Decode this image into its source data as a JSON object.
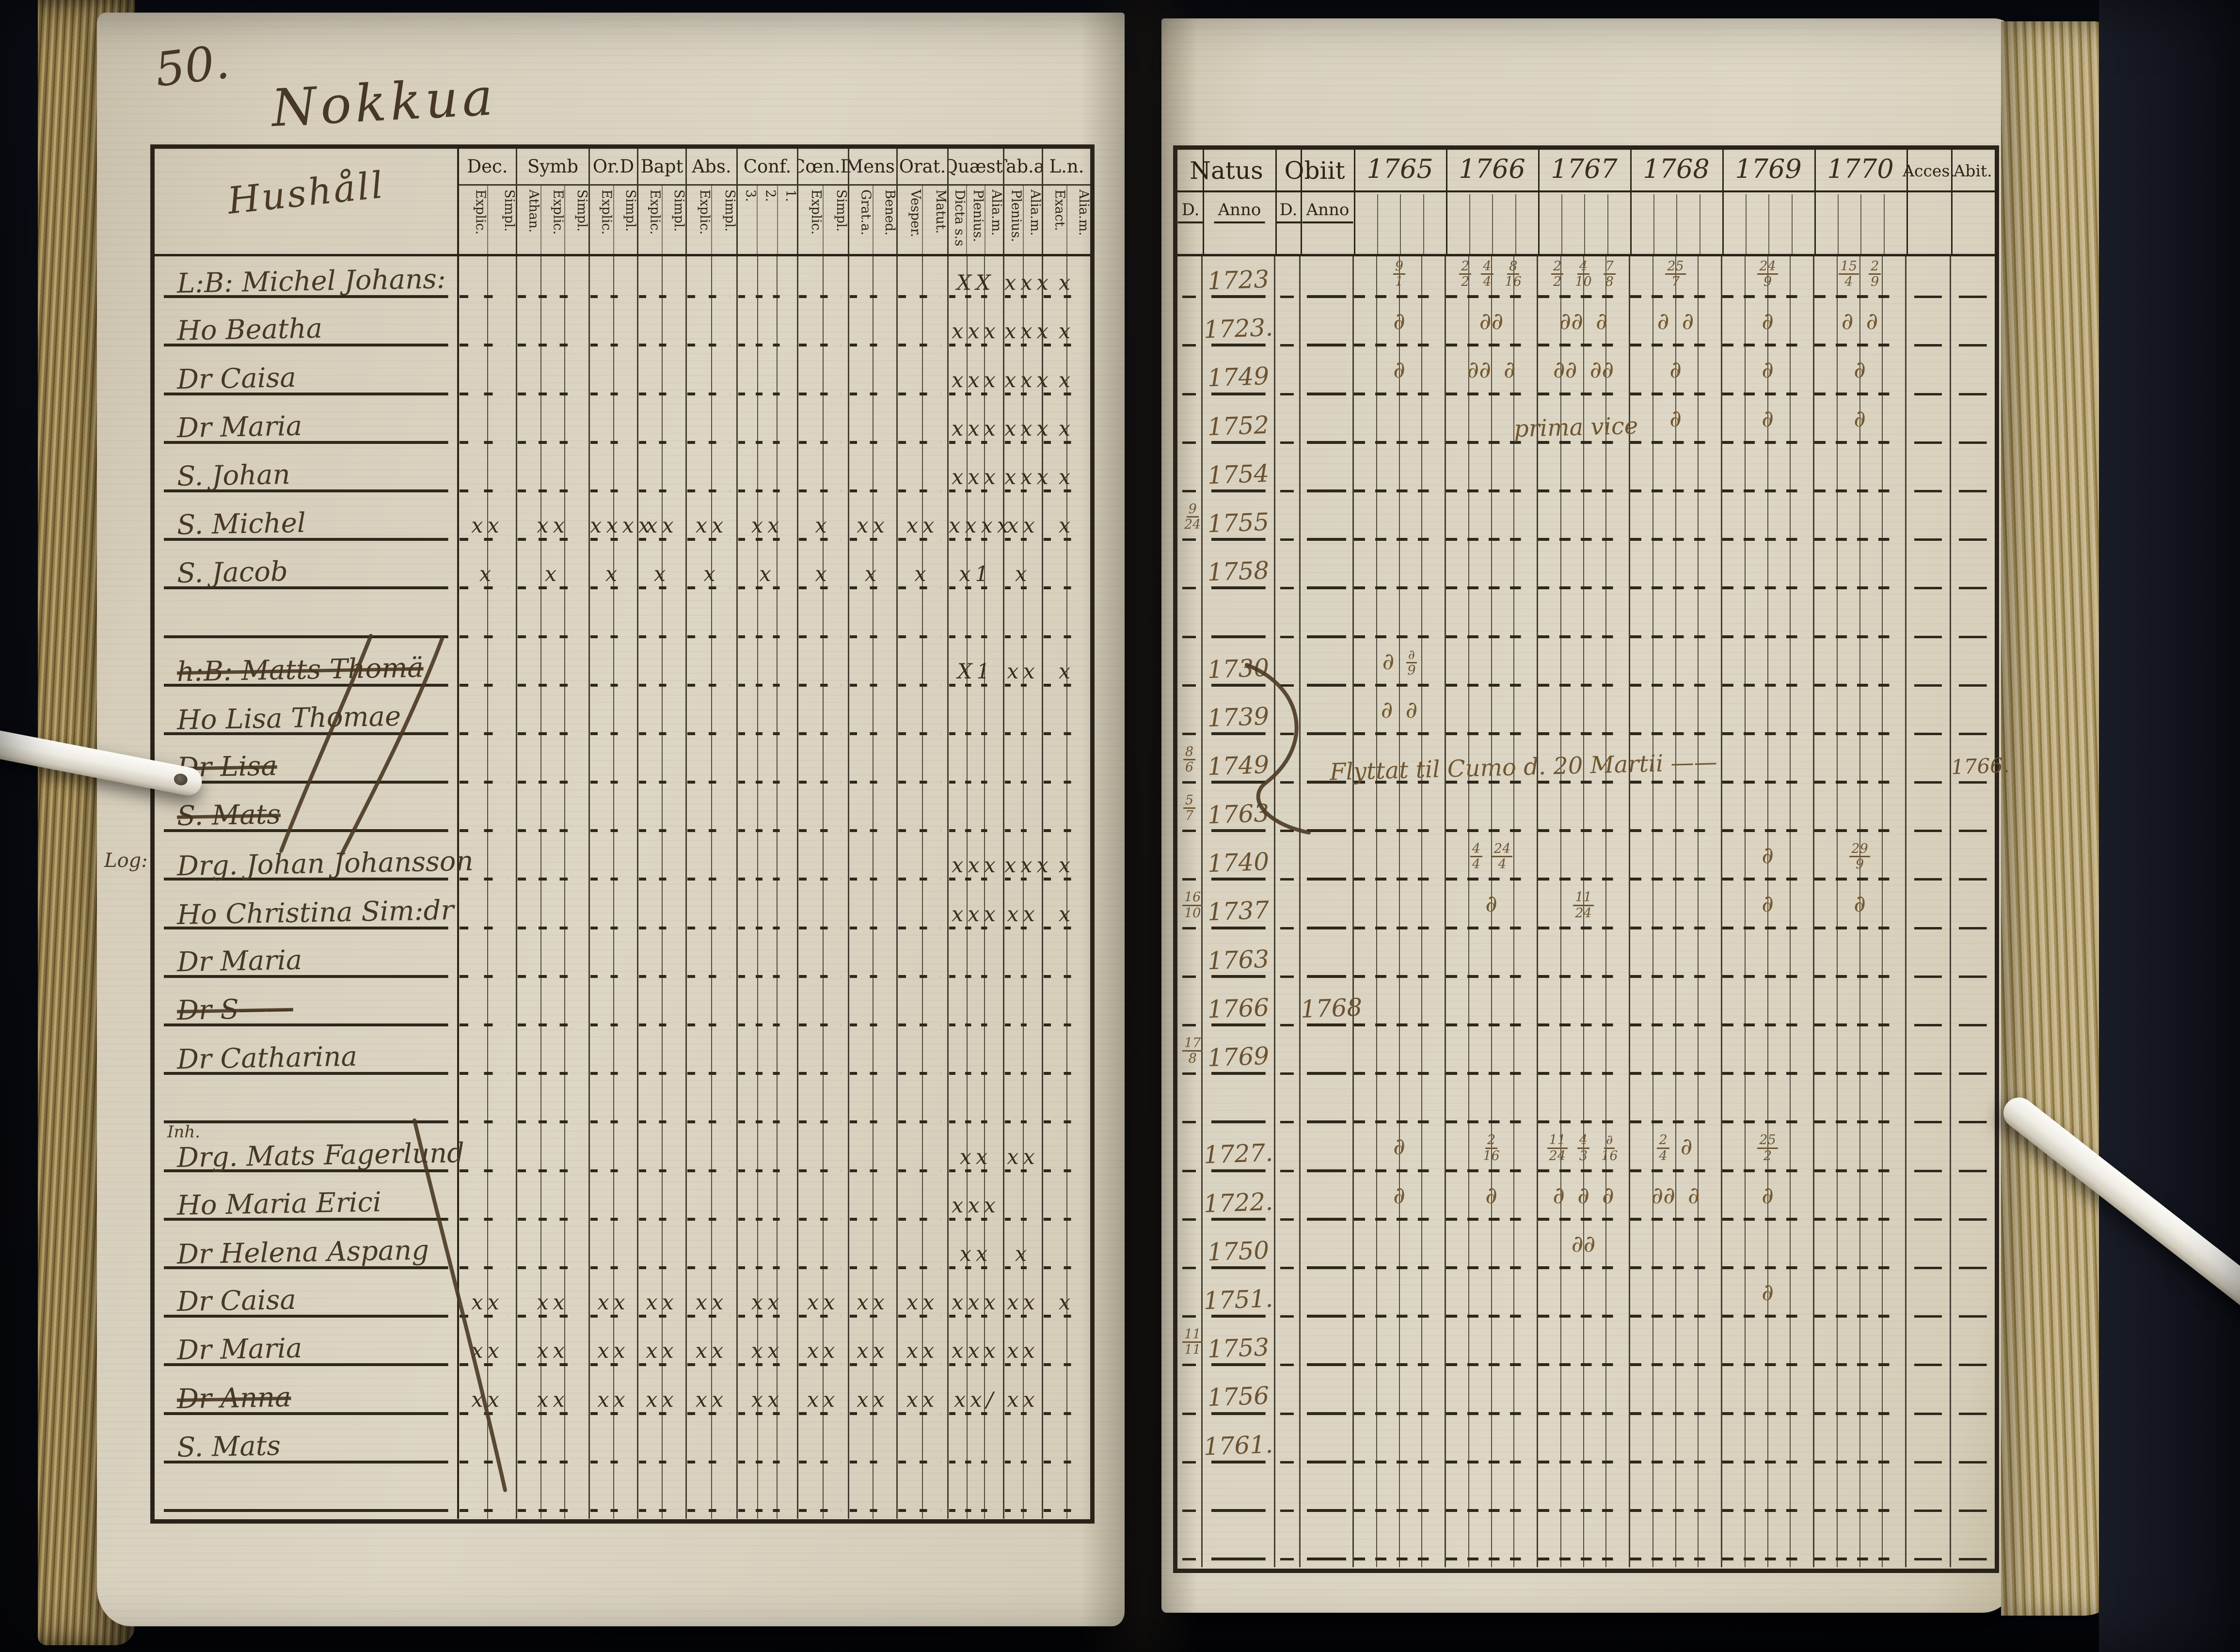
{
  "photo": {
    "description": "Open handwritten 18th-century parish communion book, two ruled pages photographed on dark background",
    "page_number": "50.",
    "page_title": "Nokkua"
  },
  "colors": {
    "background": "#07080d",
    "paper": "#d8d0bd",
    "ink_printed": "#2b2418",
    "table_lines": "#2e281c",
    "handwriting_dark": "#473826",
    "handwriting_brown": "#6b5535",
    "page_edges": "#8d7747",
    "rod_white": "#f5f2ea"
  },
  "left_table": {
    "name_header": "Hushåll",
    "columns": [
      {
        "label": "Dec.",
        "subs": [
          "Explic.",
          "Simpl."
        ]
      },
      {
        "label": "Symb",
        "subs": [
          "Athan.",
          "Explic.",
          "Simpl."
        ]
      },
      {
        "label": "Or.D",
        "subs": [
          "Explic.",
          "Simpl."
        ]
      },
      {
        "label": "Bapt",
        "subs": [
          "Explic.",
          "Simpl."
        ]
      },
      {
        "label": "Abs.",
        "subs": [
          "Explic.",
          "Simpl."
        ]
      },
      {
        "label": "Conf.",
        "subs": [
          "3.",
          "2.",
          "1."
        ]
      },
      {
        "label": "Cœn.D",
        "subs": [
          "Explic.",
          "Simpl."
        ]
      },
      {
        "label": "Mens.",
        "subs": [
          "Grat.a.",
          "Bened."
        ]
      },
      {
        "label": "Orat.",
        "subs": [
          "Vesper.",
          "Matut."
        ]
      },
      {
        "label": "Quæst.",
        "subs": [
          "Dicta s.s",
          "Plenius.",
          "Alia.m."
        ]
      },
      {
        "label": "Tab.æ",
        "subs": [
          "Plenius.",
          "Alia.m."
        ]
      },
      {
        "label": "L.n.",
        "subs": [
          "Exact.",
          "Alia.m."
        ]
      }
    ]
  },
  "right_table": {
    "natus": {
      "label": "Natus",
      "subs": [
        "D.",
        "Anno"
      ]
    },
    "obiit": {
      "label": "Obiit",
      "subs": [
        "D.",
        "Anno"
      ]
    },
    "years": [
      "1765",
      "1766",
      "1767",
      "1768",
      "1769",
      "1770"
    ],
    "acces_label": "Acces.",
    "abit_label": "Abit."
  },
  "rows": [
    {
      "name": "L:B: Michel Johans:",
      "marks": [
        "",
        "",
        "",
        "",
        "",
        "",
        "",
        "",
        "",
        "XX",
        "xxx",
        "x"
      ],
      "natus_anno": "1723",
      "e1765": "9/1",
      "e1766": "2/2 4/4 8/16",
      "e1767": "2/2 4/10 7/8",
      "e1768": "25/7",
      "e1769": "24/9",
      "e1770": "15/4 2/9"
    },
    {
      "name": "Ho Beatha",
      "marks": [
        "",
        "",
        "",
        "",
        "",
        "",
        "",
        "",
        "",
        "xxx",
        "xxx",
        "x"
      ],
      "natus_anno": "1723.",
      "e1765": "∂",
      "e1766": "∂∂",
      "e1767": "∂∂ ∂",
      "e1768": "∂ ∂",
      "e1769": "∂",
      "e1770": "∂ ∂"
    },
    {
      "name": "Dr Caisa",
      "marks": [
        "",
        "",
        "",
        "",
        "",
        "",
        "",
        "",
        "",
        "xxx",
        "xxx",
        "x"
      ],
      "natus_anno": "1749",
      "e1765": "∂",
      "e1766": "∂∂ ∂",
      "e1767": "∂∂ ∂∂",
      "e1768": "∂",
      "e1769": "∂",
      "e1770": "∂"
    },
    {
      "name": "Dr Maria",
      "marks": [
        "",
        "",
        "",
        "",
        "",
        "",
        "",
        "",
        "",
        "xxx",
        "xxx",
        "x"
      ],
      "natus_anno": "1752",
      "note": "prima vice",
      "note_col": "1767",
      "e1768": "∂",
      "e1769": "∂",
      "e1770": "∂"
    },
    {
      "name": "S. Johan",
      "marks": [
        "",
        "",
        "",
        "",
        "",
        "",
        "",
        "",
        "",
        "xxx",
        "xxx",
        "x"
      ],
      "natus_anno": "1754"
    },
    {
      "name": "S. Michel",
      "marks": [
        "xx",
        "xx",
        "xxxx",
        "xx",
        "xx",
        "xx",
        "x",
        "xx",
        "xx",
        "xxxx",
        "xx",
        "x"
      ],
      "natus_d": "9/24",
      "natus_anno": "1755"
    },
    {
      "name": "S. Jacob",
      "marks": [
        "x",
        "x",
        "x",
        "x",
        "x",
        "x",
        "x",
        "x",
        "x",
        "x1",
        "x",
        ""
      ],
      "natus_anno": "1758"
    },
    {},
    {
      "name": "h:B: Matts Thomä",
      "struck": true,
      "marks": [
        "",
        "",
        "",
        "",
        "",
        "",
        "",
        "",
        "",
        "X1",
        "xx",
        "x"
      ],
      "natus_anno": "1730",
      "e1765": "∂ ∂/9"
    },
    {
      "name": "Ho Lisa Thomae",
      "natus_anno": "1739",
      "e1765": "∂ ∂"
    },
    {
      "name": "Dr Lisa",
      "struck": true,
      "natus_d": "8/6",
      "natus_anno": "1749",
      "note": "Flyttat til Cumo d. 20 Martii ——",
      "note_col": "1765",
      "abit": "1766."
    },
    {
      "name": "S. Mats",
      "struck": true,
      "natus_d": "5/7",
      "natus_anno": "1763"
    },
    {
      "name": "Drg. Johan Johansson",
      "margin": "Log:",
      "margin_pos": "left",
      "marks": [
        "",
        "",
        "",
        "",
        "",
        "",
        "",
        "",
        "",
        "xxx",
        "xxx",
        "x"
      ],
      "natus_anno": "1740",
      "e1766": "4/4 24/4",
      "e1769": "∂",
      "e1770": "29/9"
    },
    {
      "name": "Ho Christina Sim:dr",
      "marks": [
        "",
        "",
        "",
        "",
        "",
        "",
        "",
        "",
        "",
        "xxx",
        "xx",
        "x"
      ],
      "natus_d": "16/10",
      "natus_anno": "1737",
      "e1766": "∂",
      "e1767": "11/24",
      "e1769": "∂",
      "e1770": "∂"
    },
    {
      "name": "Dr Maria",
      "natus_anno": "1763"
    },
    {
      "name": "Dr S——",
      "struck": true,
      "natus_anno": "1766",
      "obiit_anno": "1768"
    },
    {
      "name": "Dr Catharina",
      "natus_d": "17/8",
      "natus_anno": "1769"
    },
    {},
    {
      "name": "Drg. Mats Fagerlund",
      "margin": "Inh.",
      "margin_pos": "above",
      "marks": [
        "",
        "",
        "",
        "",
        "",
        "",
        "",
        "",
        "",
        "xx",
        "xx",
        ""
      ],
      "natus_anno": "1727.",
      "e1765": "∂",
      "e1766": "2/16",
      "e1767": "11/24 4/3 ∂/16",
      "e1768": "2/4 ∂",
      "e1769": "25/2"
    },
    {
      "name": "Ho Maria Erici",
      "marks": [
        "",
        "",
        "",
        "",
        "",
        "",
        "",
        "",
        "",
        "xxx",
        "",
        ""
      ],
      "natus_anno": "1722.",
      "e1765": "∂",
      "e1766": "∂",
      "e1767": "∂ ∂ ∂",
      "e1768": "∂∂ ∂",
      "e1769": "∂"
    },
    {
      "name": "Dr Helena Aspang",
      "marks": [
        "",
        "",
        "",
        "",
        "",
        "",
        "",
        "",
        "",
        "xx",
        "x",
        ""
      ],
      "natus_anno": "1750",
      "e1767": "∂∂"
    },
    {
      "name": "Dr Caisa",
      "marks": [
        "xx",
        "xx",
        "xx",
        "xx",
        "xx",
        "xx",
        "xx",
        "xx",
        "xx",
        "xxx",
        "xx",
        "x"
      ],
      "natus_anno": "1751.",
      "e1769": "∂"
    },
    {
      "name": "Dr Maria",
      "marks": [
        "xx",
        "xx",
        "xx",
        "xx",
        "xx",
        "xx",
        "xx",
        "xx",
        "xx",
        "xxx",
        "xx",
        ""
      ],
      "natus_d": "11/11",
      "natus_anno": "1753"
    },
    {
      "name": "Dr Anna",
      "struck": true,
      "marks": [
        "xx",
        "xx",
        "xx",
        "xx",
        "xx",
        "xx",
        "xx",
        "xx",
        "xx",
        "xx/",
        "xx",
        ""
      ],
      "natus_anno": "1756"
    },
    {
      "name": "S. Mats",
      "natus_anno": "1761."
    },
    {}
  ]
}
